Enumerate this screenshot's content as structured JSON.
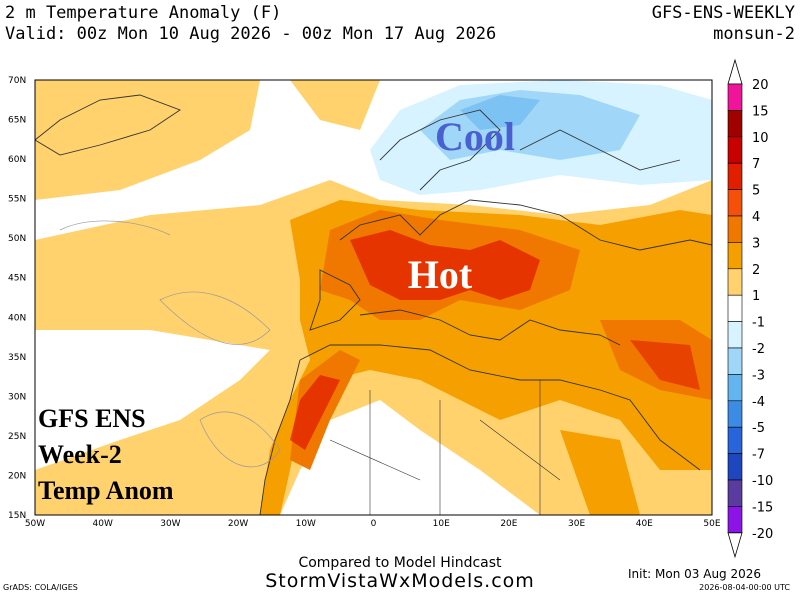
{
  "header": {
    "title": "2 m Temperature Anomaly (F)",
    "model": "GFS-ENS-WEEKLY",
    "valid": "Valid: 00z Mon 10 Aug 2026 - 00z Mon 17 Aug 2026",
    "run": "monsun-2"
  },
  "map": {
    "lat_labels": [
      "70N",
      "65N",
      "60N",
      "55N",
      "50N",
      "45N",
      "40N",
      "35N",
      "30N",
      "25N",
      "20N",
      "15N"
    ],
    "lon_labels": [
      "50W",
      "40W",
      "30W",
      "20W",
      "10W",
      "0",
      "10E",
      "20E",
      "30E",
      "40E",
      "50E"
    ],
    "annotations": {
      "cool": "Cool",
      "hot": "Hot"
    },
    "caption": [
      "GFS ENS",
      "Week-2",
      "Temp Anom"
    ]
  },
  "colorbar": {
    "labels": [
      "20",
      "15",
      "10",
      "7",
      "5",
      "4",
      "3",
      "2",
      "1",
      "-1",
      "-2",
      "-3",
      "-4",
      "-5",
      "-7",
      "-10",
      "-15",
      "-20"
    ],
    "colors": [
      "#f0149c",
      "#a00000",
      "#c80000",
      "#e11e00",
      "#f5500a",
      "#f07800",
      "#f5a000",
      "#ffd26e",
      "#ffffff",
      "#d7f3ff",
      "#a0d7f8",
      "#64b4f0",
      "#3c8ce6",
      "#2864dc",
      "#1e46be",
      "#5a3ca0",
      "#8c14e6"
    ]
  },
  "footer": {
    "compare": "Compared to Model Hindcast",
    "site": "StormVistaWxModels.com",
    "init": "Init: Mon 03 Aug 2026",
    "stamp": "2026-08-04-00:00 UTC",
    "grads": "GrADS: COLA/IGES"
  }
}
